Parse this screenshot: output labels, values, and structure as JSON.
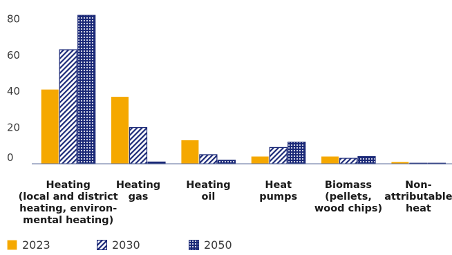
{
  "chart_data": {
    "type": "bar",
    "categories": [
      "Heating\n(local and district\nheating, environ-\nmental heating)",
      "Heating\ngas",
      "Heating\noil",
      "Heat\npumps",
      "Biomass\n(pellets,\nwood chips)",
      "Non-\nattributable\nheat"
    ],
    "series": [
      {
        "name": "2023",
        "values": [
          41,
          37,
          13,
          4,
          4,
          1
        ],
        "color": "#f5a800",
        "pattern": "solid"
      },
      {
        "name": "2030",
        "values": [
          63,
          20,
          5,
          9,
          3,
          0.3
        ],
        "color": "#1c2a78",
        "pattern": "hatch"
      },
      {
        "name": "2050",
        "values": [
          82,
          1,
          2,
          12,
          4,
          0.3
        ],
        "color": "#1c2a78",
        "pattern": "dots"
      }
    ],
    "yticks": [
      0,
      20,
      40,
      60,
      80
    ],
    "ylim": [
      0,
      84
    ],
    "grid": false,
    "legend": "bottom-left"
  }
}
